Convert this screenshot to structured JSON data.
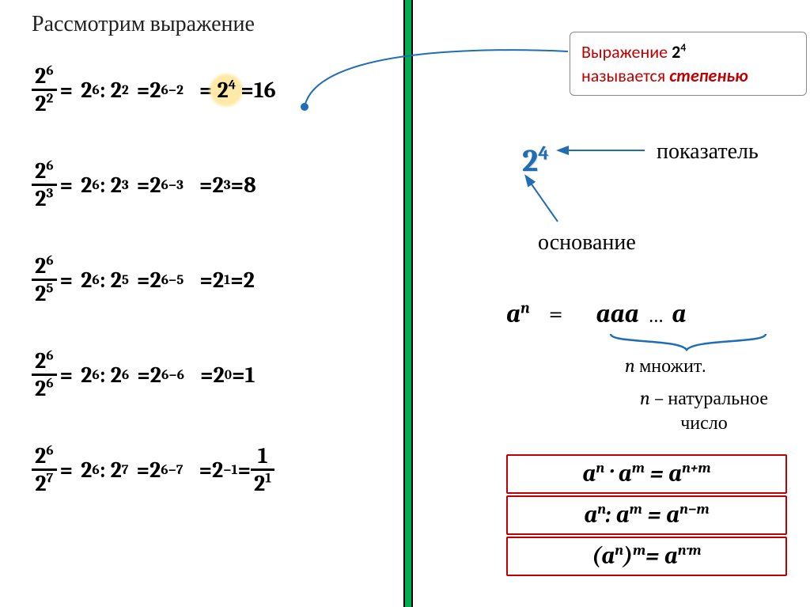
{
  "title": "Рассмотрим выражение",
  "divider_color": "#00b050",
  "highlight_color": "#ffe9a8",
  "rows": [
    {
      "num": "2",
      "numexp": "6",
      "den": "2",
      "denexp": "2",
      "a": "2",
      "ae": "6",
      "b": "2",
      "be": "2",
      "diff": "6−2",
      "res_base": "2",
      "res_exp": "4",
      "val": "16",
      "highlight_res": true
    },
    {
      "num": "2",
      "numexp": "6",
      "den": "2",
      "denexp": "3",
      "a": "2",
      "ae": "6",
      "b": "2",
      "be": "3",
      "diff": "6−3",
      "res_base": "2",
      "res_exp": "3",
      "val": "8"
    },
    {
      "num": "2",
      "numexp": "6",
      "den": "2",
      "denexp": "5",
      "a": "2",
      "ae": "6",
      "b": "2",
      "be": "5",
      "diff": "6−5",
      "res_base": "2",
      "res_exp": "1",
      "val": "2"
    },
    {
      "num": "2",
      "numexp": "6",
      "den": "2",
      "denexp": "6",
      "a": "2",
      "ae": "6",
      "b": "2",
      "be": "6",
      "diff": "6−6",
      "res_base": "2",
      "res_exp": "0",
      "val": "1"
    },
    {
      "num": "2",
      "numexp": "6",
      "den": "2",
      "denexp": "7",
      "a": "2",
      "ae": "6",
      "b": "2",
      "be": "7",
      "diff": "6−7",
      "res_base": "2",
      "res_exp": "−1",
      "val_frac": {
        "top_base": "1",
        "top_exp": "",
        "bot_base": "2",
        "bot_exp": "1"
      }
    }
  ],
  "callout": {
    "prefix": "Выражение ",
    "pow_base": "2",
    "pow_exp": "4",
    "suffix1": "называется ",
    "suffix2": "степенью",
    "text_color": "#c00000",
    "border_color": "#888888"
  },
  "connector_color": "#1f6db5",
  "big24": {
    "base": "2",
    "exp": "4",
    "color": "#1f6db5"
  },
  "arrow_color": "#1f6db5",
  "label_exponent": "показатель",
  "label_base": "основание",
  "def": {
    "lhs_base": "a",
    "lhs_exp": "n",
    "eq": "=",
    "rhs": "aaa",
    "dots": "…",
    "last": "a"
  },
  "brace_color": "#1f6db5",
  "n_mult_label": "множит.",
  "n_var": "n",
  "n_note_line1": " – натуральное",
  "n_note_line2": "число",
  "rules": [
    {
      "html": "a<sup>n</sup> · a<sup>m</sup> = a<sup>n+m</sup>"
    },
    {
      "html": "a<sup>n</sup>: a<sup>m</sup> = a<sup>n−m</sup>"
    },
    {
      "html": "(a<sup>n</sup>)<sup>m</sup>= a<sup>n·m</sup>"
    }
  ],
  "rule_border_color": "#c00000",
  "fonts": {
    "body": "Cambria",
    "callout": "Calibri",
    "math": "Cambria Math"
  }
}
